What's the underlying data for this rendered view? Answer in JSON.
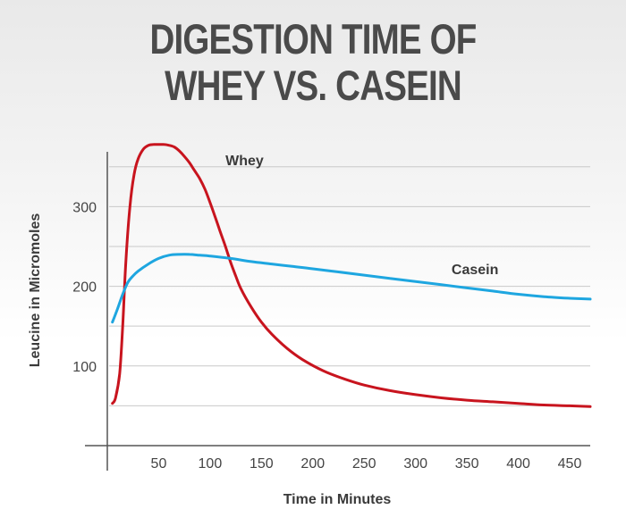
{
  "title_lines": [
    "DIGESTION TIME OF",
    "WHEY VS. CASEIN"
  ],
  "chart_data": {
    "type": "line",
    "title": "DIGESTION TIME OF WHEY VS. CASEIN",
    "xlabel": "Time in Minutes",
    "ylabel": "Leucine in Micromoles",
    "xlim": [
      0,
      470
    ],
    "ylim": [
      0,
      380
    ],
    "x_ticks": [
      50,
      100,
      150,
      200,
      250,
      300,
      350,
      400,
      450
    ],
    "y_ticks": [
      100,
      200,
      300
    ],
    "grid_y": [
      50,
      100,
      150,
      200,
      250,
      300,
      350
    ],
    "grid": true,
    "series": [
      {
        "name": "Whey",
        "color": "#c8141e",
        "x": [
          5,
          8,
          12,
          15,
          18,
          22,
          26,
          30,
          35,
          40,
          45,
          50,
          55,
          60,
          65,
          70,
          75,
          80,
          85,
          90,
          95,
          100,
          105,
          110,
          115,
          120,
          125,
          130,
          140,
          150,
          160,
          175,
          190,
          210,
          230,
          250,
          275,
          300,
          325,
          350,
          375,
          400,
          425,
          450,
          470
        ],
        "values": [
          53,
          60,
          90,
          150,
          230,
          300,
          340,
          360,
          372,
          377,
          378,
          378,
          378,
          377,
          375,
          370,
          363,
          355,
          345,
          335,
          322,
          305,
          287,
          268,
          250,
          230,
          213,
          197,
          174,
          155,
          140,
          122,
          108,
          94,
          84,
          76,
          69,
          64,
          60,
          57,
          55,
          53,
          51,
          50,
          49
        ]
      },
      {
        "name": "Casein",
        "color": "#1ea6e0",
        "x": [
          5,
          10,
          15,
          20,
          25,
          30,
          40,
          50,
          60,
          70,
          80,
          90,
          100,
          120,
          140,
          160,
          180,
          200,
          225,
          250,
          275,
          300,
          325,
          350,
          375,
          400,
          425,
          450,
          470
        ],
        "values": [
          155,
          172,
          190,
          205,
          213,
          219,
          228,
          235,
          239,
          240,
          240,
          239,
          238,
          235,
          231,
          228,
          225,
          222,
          218,
          214,
          210,
          206,
          202,
          198,
          194,
          190,
          187,
          185,
          184
        ]
      }
    ],
    "annotations": [
      {
        "text": "Whey",
        "x": 115,
        "y": 352
      },
      {
        "text": "Casein",
        "x": 335,
        "y": 215
      }
    ]
  }
}
